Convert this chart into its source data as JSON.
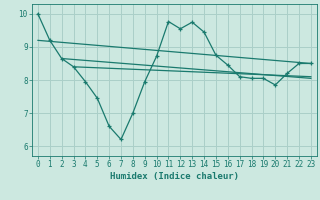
{
  "xlabel": "Humidex (Indice chaleur)",
  "ylabel": "",
  "bg_color": "#cce8e0",
  "line_color": "#1a7a6e",
  "grid_color": "#aacfc8",
  "xlim": [
    -0.5,
    23.5
  ],
  "ylim": [
    5.7,
    10.3
  ],
  "xticks": [
    0,
    1,
    2,
    3,
    4,
    5,
    6,
    7,
    8,
    9,
    10,
    11,
    12,
    13,
    14,
    15,
    16,
    17,
    18,
    19,
    20,
    21,
    22,
    23
  ],
  "yticks": [
    6,
    7,
    8,
    9,
    10
  ],
  "main_x": [
    0,
    1,
    2,
    3,
    4,
    5,
    6,
    7,
    8,
    9,
    10,
    11,
    12,
    13,
    14,
    15,
    16,
    17,
    18,
    19,
    20,
    21,
    22,
    23
  ],
  "main_y": [
    10.0,
    9.2,
    8.65,
    8.4,
    7.95,
    7.45,
    6.6,
    6.2,
    7.0,
    7.95,
    8.72,
    9.77,
    9.55,
    9.75,
    9.45,
    8.75,
    8.45,
    8.1,
    8.05,
    8.05,
    7.85,
    8.2,
    8.5,
    8.5
  ],
  "trend1_x": [
    0,
    23
  ],
  "trend1_y": [
    9.2,
    8.5
  ],
  "trend2_x": [
    2,
    23
  ],
  "trend2_y": [
    8.65,
    8.05
  ],
  "trend3_x": [
    3,
    23
  ],
  "trend3_y": [
    8.4,
    8.1
  ]
}
